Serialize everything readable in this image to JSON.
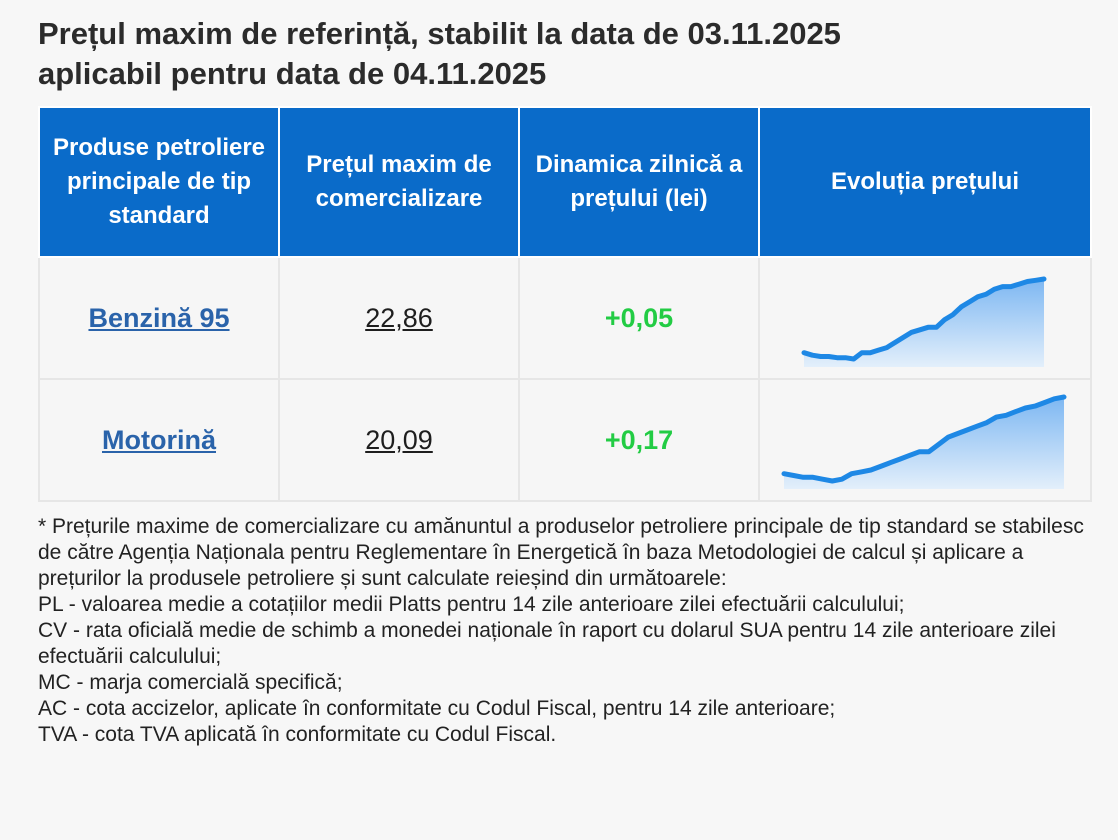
{
  "title_line1": "Prețul maxim de referință, stabilit la data de 03.11.2025",
  "title_line2": "aplicabil pentru data de 04.11.2025",
  "table": {
    "headers": [
      "Produse petroliere principale de tip standard",
      "Prețul maxim de comercializare",
      "Dinamica zilnică a prețului (lei)",
      "Evoluția prețului"
    ],
    "rows": [
      {
        "product": "Benzină 95",
        "price": "22,86",
        "change": "+0,05",
        "trend": [
          21.2,
          21.18,
          21.17,
          21.17,
          21.16,
          21.16,
          21.15,
          21.2,
          21.2,
          21.22,
          21.24,
          21.28,
          21.32,
          21.36,
          21.38,
          21.4,
          21.4,
          21.46,
          21.5,
          21.56,
          21.6,
          21.64,
          21.66,
          21.7,
          21.72,
          21.72,
          21.74,
          21.76,
          21.77,
          21.78
        ]
      },
      {
        "product": "Motorină",
        "price": "20,09",
        "change": "+0,17",
        "trend": [
          19.4,
          19.39,
          19.38,
          19.38,
          19.37,
          19.36,
          19.37,
          19.4,
          19.41,
          19.42,
          19.44,
          19.46,
          19.48,
          19.5,
          19.52,
          19.52,
          19.56,
          19.6,
          19.62,
          19.64,
          19.66,
          19.68,
          19.71,
          19.72,
          19.74,
          19.76,
          19.77,
          19.79,
          19.81,
          19.82
        ]
      }
    ]
  },
  "colors": {
    "header_bg": "#0a6bc9",
    "link": "#2a63aa",
    "positive": "#22cc44",
    "spark_line": "#1e88e5"
  },
  "footnote": [
    "* Prețurile maxime de comercializare cu amănuntul a produselor petroliere principale de tip standard se stabilesc de către Agenția Naționala pentru Reglementare în Energetică în baza Metodologiei de calcul și aplicare a prețurilor la produsele petroliere și sunt calculate reieșind din următoarele:",
    "PL - valoarea medie a cotațiilor medii Platts pentru 14 zile anterioare zilei efectuării calculului;",
    "CV - rata oficială medie de schimb a monedei naționale în raport cu dolarul SUA pentru 14 zile anterioare zilei efectuării calculului;",
    "MC - marja comercială specifică;",
    "AC - cota accizelor, aplicate în conformitate cu Codul Fiscal, pentru 14 zile anterioare;",
    "TVA - cota TVA aplicată în conformitate cu Codul Fiscal."
  ]
}
